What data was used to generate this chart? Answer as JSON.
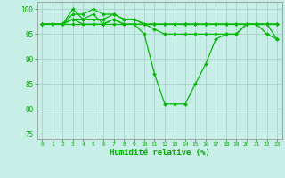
{
  "x_labels": [
    0,
    1,
    2,
    3,
    4,
    5,
    6,
    7,
    8,
    9,
    10,
    11,
    12,
    13,
    14,
    15,
    16,
    17,
    18,
    19,
    20,
    21,
    22,
    23
  ],
  "line1": [
    97,
    97,
    97,
    100,
    98,
    99,
    97,
    98,
    97,
    97,
    95,
    87,
    81,
    81,
    81,
    85,
    89,
    94,
    95,
    95,
    97,
    97,
    95,
    94
  ],
  "line2": [
    97,
    97,
    97,
    99,
    99,
    100,
    99,
    99,
    98,
    98,
    97,
    96,
    95,
    95,
    95,
    95,
    95,
    95,
    95,
    95,
    97,
    97,
    97,
    94
  ],
  "line3": [
    97,
    97,
    97,
    98,
    98,
    98,
    98,
    99,
    98,
    98,
    97,
    97,
    97,
    97,
    97,
    97,
    97,
    97,
    97,
    97,
    97,
    97,
    97,
    97
  ],
  "line4": [
    97,
    97,
    97,
    98,
    97,
    97,
    97,
    98,
    97,
    97,
    97,
    97,
    97,
    97,
    97,
    97,
    97,
    97,
    97,
    97,
    97,
    97,
    97,
    97
  ],
  "line5": [
    97,
    97,
    97,
    97,
    97,
    97,
    97,
    97,
    97,
    97,
    97,
    97,
    97,
    97,
    97,
    97,
    97,
    97,
    97,
    97,
    97,
    97,
    97,
    97
  ],
  "line_color": "#00bb00",
  "bg_color": "#c8eee8",
  "grid_color": "#a0ccc4",
  "tick_color": "#00aa00",
  "xlabel": "Humidité relative (%)",
  "ylim": [
    74,
    101.5
  ],
  "yticks": [
    75,
    80,
    85,
    90,
    95,
    100
  ],
  "marker": "D",
  "markersize": 2.0,
  "linewidth": 0.9
}
